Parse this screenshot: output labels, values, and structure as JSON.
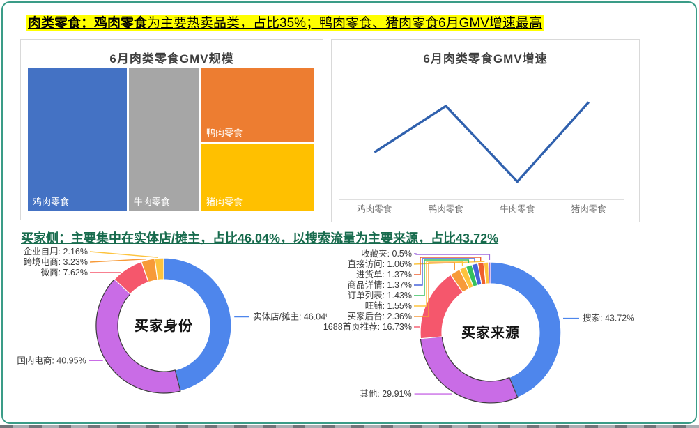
{
  "page": {
    "headline1": {
      "bold": "肉类零食：鸡肉零食",
      "rest": "为主要热卖品类，占比35%；鸭肉零食、猪肉零食6月GMV增速最高",
      "highlight_color": "#ffff00"
    },
    "headline2": "买家侧：主要集中在实体店/摊主，占比46.04%，以搜索流量为主要来源，占比43.72%",
    "headline2_color": "#176b4d",
    "border_color": "#3a9c87"
  },
  "chart_data": [
    {
      "type": "treemap",
      "title": "6月肉类零食GMV规模",
      "items": [
        {
          "label": "鸡肉零食",
          "value": 35,
          "color": "#4472c4"
        },
        {
          "label": "牛肉零食",
          "value": 25,
          "color": "#a6a6a6"
        },
        {
          "label": "鸭肉零食",
          "value": 21,
          "color": "#ed7d31"
        },
        {
          "label": "猪肉零食",
          "value": 19,
          "color": "#ffc000"
        }
      ]
    },
    {
      "type": "line",
      "title": "6月肉类零食GMV增速",
      "categories": [
        "鸡肉零食",
        "鸭肉零食",
        "牛肉零食",
        "猪肉零食"
      ],
      "values": [
        48,
        95,
        18,
        99
      ],
      "ylim": [
        0,
        110
      ],
      "line_color": "#3061ae",
      "y_axis_visible": false,
      "grid": false
    },
    {
      "type": "donut",
      "center_label": "买家身份",
      "segments": [
        {
          "label": "实体店/摊主",
          "value": 46.04,
          "color": "#4e86ec",
          "placement": "right"
        },
        {
          "label": "国内电商",
          "value": 40.95,
          "color": "#c96ce6",
          "placement": "left"
        },
        {
          "label": "微商",
          "value": 7.62,
          "color": "#f5576c",
          "placement": "stack"
        },
        {
          "label": "跨境电商",
          "value": 3.23,
          "color": "#f79a38",
          "placement": "stack"
        },
        {
          "label": "企业自用",
          "value": 2.16,
          "color": "#fdc33d",
          "placement": "stack"
        }
      ]
    },
    {
      "type": "donut",
      "center_label": "买家来源",
      "segments": [
        {
          "label": "搜索",
          "value": 43.72,
          "color": "#4e86ec",
          "placement": "right"
        },
        {
          "label": "其他",
          "value": 29.91,
          "color": "#c96ce6",
          "placement": "left"
        },
        {
          "label": "1688首页推荐",
          "value": 16.73,
          "color": "#f5576c",
          "placement": "stack"
        },
        {
          "label": "买家后台",
          "value": 2.36,
          "color": "#f79a38",
          "placement": "stack"
        },
        {
          "label": "旺铺",
          "value": 1.55,
          "color": "#fdc33d",
          "placement": "stack"
        },
        {
          "label": "订单列表",
          "value": 1.43,
          "color": "#35c05e",
          "placement": "stack"
        },
        {
          "label": "商品详情",
          "value": 1.37,
          "color": "#4663db",
          "placement": "stack"
        },
        {
          "label": "进货单",
          "value": 1.37,
          "color": "#ef5f2d",
          "placement": "stack"
        },
        {
          "label": "直接访问",
          "value": 1.06,
          "color": "#fdc33d",
          "placement": "stack"
        },
        {
          "label": "收藏夹",
          "value": 0.5,
          "color": "#a06ce0",
          "placement": "stack"
        }
      ]
    }
  ]
}
